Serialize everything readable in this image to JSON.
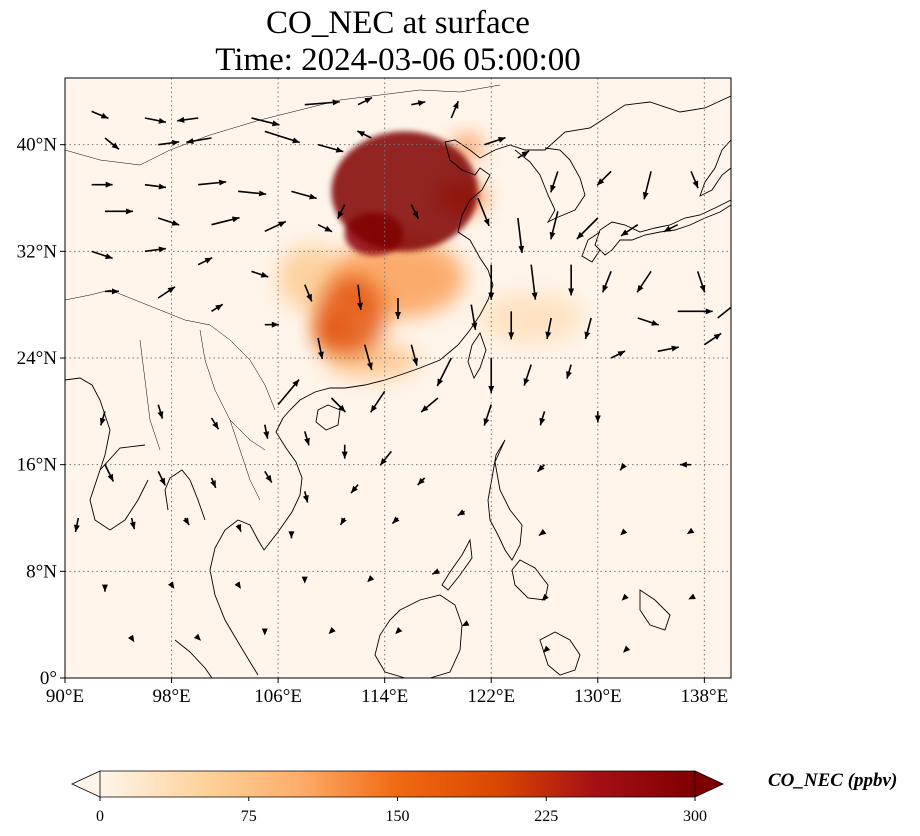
{
  "title": {
    "line1": "CO_NEC at surface",
    "line2": "Time: 2024-03-06 05:00:00"
  },
  "map": {
    "lon_range": [
      90,
      140
    ],
    "lat_range": [
      0,
      45
    ],
    "lon_ticks": [
      {
        "value": 90,
        "label": "90°E"
      },
      {
        "value": 98,
        "label": "98°E"
      },
      {
        "value": 106,
        "label": "106°E"
      },
      {
        "value": 114,
        "label": "114°E"
      },
      {
        "value": 122,
        "label": "122°E"
      },
      {
        "value": 130,
        "label": "130°E"
      },
      {
        "value": 138,
        "label": "138°E"
      }
    ],
    "lat_ticks": [
      {
        "value": 0,
        "label": "0°"
      },
      {
        "value": 8,
        "label": "8°N"
      },
      {
        "value": 16,
        "label": "16°N"
      },
      {
        "value": 24,
        "label": "24°N"
      },
      {
        "value": 32,
        "label": "32°N"
      },
      {
        "value": 40,
        "label": "40°N"
      }
    ],
    "gridlines": true,
    "background_color": "#fff5eb",
    "plumes": [
      {
        "lon": 115.5,
        "lat": 36.5,
        "rlon": 5.5,
        "rlat": 4.5,
        "value": 300
      },
      {
        "lon": 113.2,
        "lat": 33.3,
        "rlon": 2.2,
        "rlat": 1.6,
        "value": 280
      },
      {
        "lon": 111.5,
        "lat": 27.2,
        "rlon": 2.5,
        "rlat": 3.0,
        "value": 180
      },
      {
        "lon": 110.0,
        "lat": 26.0,
        "rlon": 1.3,
        "rlat": 1.6,
        "value": 170
      },
      {
        "lon": 115.0,
        "lat": 30.0,
        "rlon": 5.0,
        "rlat": 3.0,
        "value": 110
      },
      {
        "lon": 119.8,
        "lat": 36.0,
        "rlon": 1.8,
        "rlat": 1.2,
        "value": 140
      },
      {
        "lon": 120.2,
        "lat": 39.8,
        "rlon": 1.2,
        "rlat": 1.0,
        "value": 120
      },
      {
        "lon": 113.0,
        "lat": 23.8,
        "rlon": 3.5,
        "rlat": 1.4,
        "value": 70
      },
      {
        "lon": 108.5,
        "lat": 30.0,
        "rlon": 2.5,
        "rlat": 2.5,
        "value": 60
      },
      {
        "lon": 125.0,
        "lat": 27.0,
        "rlon": 4.0,
        "rlat": 2.0,
        "value": 30
      }
    ],
    "wind_vectors": [
      [
        92,
        42.5,
        1.2,
        -0.5
      ],
      [
        96,
        42,
        1.5,
        -0.3
      ],
      [
        100,
        42,
        -1.5,
        -0.2
      ],
      [
        104,
        42,
        2,
        -0.5
      ],
      [
        108,
        43,
        2.5,
        0.2
      ],
      [
        112,
        43,
        1,
        0.5
      ],
      [
        116,
        43,
        1,
        0.2
      ],
      [
        93,
        40.5,
        1,
        -0.8
      ],
      [
        97,
        40,
        1.5,
        0.2
      ],
      [
        101,
        40.5,
        -1.8,
        -0.3
      ],
      [
        105,
        41,
        2.5,
        -0.8
      ],
      [
        109,
        40,
        1.8,
        -0.5
      ],
      [
        113,
        40.5,
        -1,
        0.5
      ],
      [
        92,
        37,
        1.5,
        0
      ],
      [
        96,
        37,
        1.5,
        -0.2
      ],
      [
        100,
        37,
        2,
        0.2
      ],
      [
        103,
        36.5,
        2,
        -0.2
      ],
      [
        107,
        36.5,
        1.8,
        -0.5
      ],
      [
        111,
        35.5,
        -0.5,
        -1
      ],
      [
        116,
        35.5,
        0.5,
        -1
      ],
      [
        93,
        35,
        2,
        0
      ],
      [
        97,
        34.5,
        1.5,
        -0.5
      ],
      [
        101,
        34,
        2,
        0.5
      ],
      [
        105,
        33.5,
        1.5,
        0.7
      ],
      [
        109,
        34,
        1,
        -0.5
      ],
      [
        92,
        32,
        1.5,
        -0.5
      ],
      [
        96,
        32,
        1.5,
        0.2
      ],
      [
        100,
        31,
        1,
        0.5
      ],
      [
        104,
        30.5,
        1.2,
        -0.4
      ],
      [
        108,
        29.5,
        0.5,
        -1.2
      ],
      [
        112,
        29.5,
        0.2,
        -1.8
      ],
      [
        115,
        28.5,
        0,
        -1.5
      ],
      [
        93,
        29,
        1,
        0
      ],
      [
        97,
        28.5,
        1.2,
        0.8
      ],
      [
        101,
        27.5,
        0.8,
        0.5
      ],
      [
        105,
        26.5,
        1,
        0
      ],
      [
        109,
        25.5,
        0.3,
        -1.5
      ],
      [
        112.5,
        25,
        0.5,
        -1.8
      ],
      [
        116,
        25,
        0.4,
        -1.5
      ],
      [
        119,
        42,
        0.5,
        1.2
      ],
      [
        121.5,
        40,
        1.5,
        0.5
      ],
      [
        124,
        39,
        0.8,
        0.5
      ],
      [
        127,
        38,
        -0.5,
        -1.5
      ],
      [
        131,
        38,
        -1,
        -1
      ],
      [
        134,
        38,
        -0.5,
        -2
      ],
      [
        137,
        38,
        0.5,
        -1.2
      ],
      [
        121,
        36,
        0.8,
        -2
      ],
      [
        124,
        34.5,
        0.3,
        -2.5
      ],
      [
        127,
        35,
        -0.5,
        -2
      ],
      [
        130,
        34.5,
        -1.5,
        -1.5
      ],
      [
        133,
        34,
        -1.2,
        -0.8
      ],
      [
        136,
        34,
        -1,
        -0.5
      ],
      [
        122,
        31,
        0,
        -2.5
      ],
      [
        125,
        31,
        0.3,
        -2.5
      ],
      [
        128,
        31,
        0,
        -2.2
      ],
      [
        131,
        30.5,
        -0.6,
        -1.5
      ],
      [
        134,
        30.5,
        -1,
        -1.5
      ],
      [
        137.5,
        30.5,
        0.5,
        -1.5
      ],
      [
        120.5,
        28,
        0.3,
        -1.8
      ],
      [
        123.5,
        27.5,
        0,
        -2
      ],
      [
        126.5,
        27,
        -0.3,
        -1.5
      ],
      [
        129.5,
        27,
        -0.4,
        -1.5
      ],
      [
        133,
        27,
        1.5,
        -0.5
      ],
      [
        136,
        27.5,
        2.5,
        0
      ],
      [
        139,
        27,
        1.5,
        1.2
      ],
      [
        119,
        24,
        -1,
        -2
      ],
      [
        122,
        24,
        0,
        -2.5
      ],
      [
        125,
        23.5,
        -0.5,
        -1.5
      ],
      [
        128,
        23.5,
        -0.3,
        -1
      ],
      [
        131,
        24,
        1,
        0.5
      ],
      [
        134.5,
        24.5,
        1.5,
        0.3
      ],
      [
        138,
        25,
        1.2,
        0.8
      ],
      [
        106,
        20.5,
        1.5,
        1.8
      ],
      [
        110,
        21,
        1,
        -1
      ],
      [
        114,
        21.5,
        -1,
        -1.5
      ],
      [
        118,
        21,
        -1.2,
        -1
      ],
      [
        122,
        20.5,
        -0.5,
        -1.5
      ],
      [
        126,
        20,
        -0.3,
        -1
      ],
      [
        130,
        20,
        0,
        -0.8
      ],
      [
        93,
        20,
        -0.3,
        -1
      ],
      [
        97,
        20.5,
        0.3,
        -1
      ],
      [
        101,
        19.5,
        0.5,
        -0.8
      ],
      [
        105,
        19,
        0.2,
        -1
      ],
      [
        108,
        18.5,
        0.3,
        -1
      ],
      [
        111,
        17.5,
        0,
        -1
      ],
      [
        114.5,
        17,
        -0.8,
        -1
      ],
      [
        93,
        16,
        0.6,
        -1.2
      ],
      [
        97,
        15.5,
        0.5,
        -1
      ],
      [
        101,
        15,
        0.3,
        -0.7
      ],
      [
        105,
        15.5,
        0.5,
        -0.8
      ],
      [
        108,
        14,
        0.2,
        -0.8
      ],
      [
        112,
        14.5,
        -0.5,
        -0.6
      ],
      [
        117,
        15,
        -0.5,
        -0.5
      ],
      [
        91,
        12,
        -0.2,
        -1
      ],
      [
        95,
        12,
        0.2,
        -0.8
      ],
      [
        99,
        12,
        0.3,
        -0.5
      ],
      [
        103,
        11.5,
        0.2,
        -0.5
      ],
      [
        107,
        11,
        0,
        -0.5
      ],
      [
        111,
        12,
        -0.3,
        -0.5
      ],
      [
        115,
        12,
        -0.4,
        -0.4
      ],
      [
        120,
        12.5,
        -0.5,
        -0.3
      ],
      [
        93,
        7,
        0,
        -0.5
      ],
      [
        98,
        7,
        0.2,
        -0.3
      ],
      [
        103,
        7,
        0.2,
        -0.3
      ],
      [
        108,
        7.5,
        0,
        -0.4
      ],
      [
        113,
        7.5,
        -0.3,
        -0.3
      ],
      [
        118,
        8,
        -0.4,
        -0.2
      ],
      [
        95,
        3,
        0.2,
        -0.3
      ],
      [
        100,
        3,
        0.2,
        -0.2
      ],
      [
        105,
        3.5,
        0,
        -0.3
      ],
      [
        110,
        3.5,
        -0.2,
        -0.2
      ],
      [
        115,
        3.5,
        -0.2,
        -0.2
      ],
      [
        120,
        4,
        -0.2,
        -0.1
      ],
      [
        126,
        16,
        -0.5,
        -0.5
      ],
      [
        132,
        16,
        -0.3,
        -0.4
      ],
      [
        137,
        16,
        -0.8,
        0
      ],
      [
        126,
        11,
        -0.4,
        -0.3
      ],
      [
        132,
        11,
        -0.3,
        -0.3
      ],
      [
        137,
        11,
        -0.3,
        -0.2
      ],
      [
        126,
        6,
        -0.2,
        -0.2
      ],
      [
        132,
        6,
        -0.2,
        -0.2
      ],
      [
        137,
        6,
        -0.2,
        -0.1
      ],
      [
        126,
        2,
        -0.1,
        -0.1
      ],
      [
        132,
        2,
        -0.1,
        -0.1
      ]
    ]
  },
  "colorbar": {
    "title": "CO_NEC (ppbv)",
    "min": 0,
    "max": 300,
    "extend": "both",
    "ticks": [
      {
        "value": 0,
        "label": "0"
      },
      {
        "value": 75,
        "label": "75"
      },
      {
        "value": 150,
        "label": "150"
      },
      {
        "value": 225,
        "label": "225"
      },
      {
        "value": 300,
        "label": "300"
      }
    ],
    "colormap": [
      "#fff5eb",
      "#fdd49e",
      "#fdae6b",
      "#f16913",
      "#d94801",
      "#a50f15",
      "#7f0000"
    ]
  }
}
